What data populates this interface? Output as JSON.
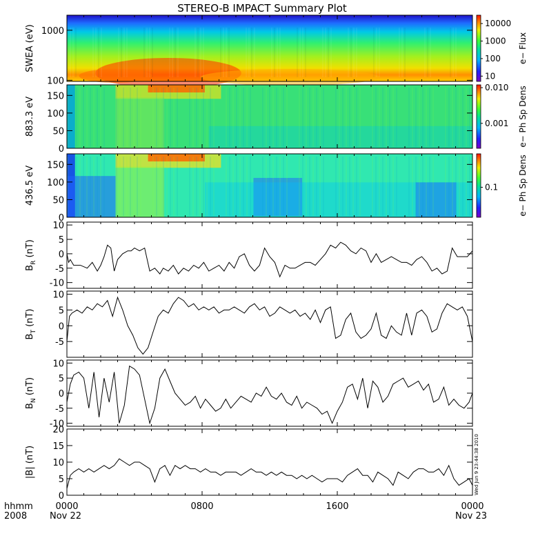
{
  "title": "STEREO-B IMPACT Summary Plot",
  "timestamp": "Wed Jun  9 23:44:38 2010",
  "footer": {
    "row_label_line1": "hhmm",
    "row_label_line2": "2008",
    "date_start": "Nov 22",
    "date_end": "Nov 23"
  },
  "chart_data": [
    {
      "type": "heatmap",
      "ylabel": "SWEA (eV)",
      "colorbar_label": "e− Flux",
      "yscale": "log",
      "ylim": [
        95,
        2000
      ],
      "yticks": [
        "100",
        "1000"
      ],
      "colorbar_ticks": [
        "10",
        "100",
        "1000",
        "10000"
      ],
      "colorbar_scale": "log",
      "colorbar_range": [
        5,
        30000
      ]
    },
    {
      "type": "heatmap",
      "ylabel": "883.3 eV",
      "colorbar_label": "e− Ph Sp Dens",
      "ylim": [
        0,
        180
      ],
      "yticks": [
        "0",
        "50",
        "100",
        "150"
      ],
      "colorbar_ticks": [
        "0.001",
        "0.010"
      ],
      "colorbar_scale": "log",
      "colorbar_range": [
        0.0002,
        0.012
      ]
    },
    {
      "type": "heatmap",
      "ylabel": "436.5 eV",
      "colorbar_label": "e− Ph Sp Dens",
      "ylim": [
        0,
        180
      ],
      "yticks": [
        "0",
        "50",
        "100",
        "150"
      ],
      "colorbar_ticks": [
        "0.1"
      ],
      "colorbar_scale": "log",
      "colorbar_range": [
        0.02,
        0.6
      ]
    },
    {
      "type": "line",
      "ylabel": "B_R (nT)",
      "ylim": [
        -12,
        11
      ],
      "yticks": [
        "10",
        "5",
        "0",
        "-5",
        "-10"
      ],
      "x": [
        0,
        0.1,
        0.2,
        0.4,
        0.8,
        1.2,
        1.5,
        1.8,
        2.0,
        2.2,
        2.4,
        2.6,
        2.8,
        3.0,
        3.3,
        3.6,
        3.8,
        4.0,
        4.3,
        4.6,
        4.9,
        5.2,
        5.5,
        5.7,
        6.0,
        6.3,
        6.6,
        6.9,
        7.2,
        7.5,
        7.8,
        8.1,
        8.4,
        8.7,
        9.0,
        9.3,
        9.6,
        9.9,
        10.2,
        10.5,
        10.8,
        11.1,
        11.4,
        11.7,
        12.0,
        12.3,
        12.6,
        12.9,
        13.2,
        13.5,
        13.8,
        14.1,
        14.4,
        14.7,
        15.0,
        15.3,
        15.6,
        15.9,
        16.2,
        16.5,
        16.8,
        17.1,
        17.4,
        17.7,
        18.0,
        18.3,
        18.6,
        18.9,
        19.2,
        19.5,
        19.8,
        20.1,
        20.4,
        20.7,
        21.0,
        21.3,
        21.6,
        21.9,
        22.2,
        22.5,
        22.8,
        23.1,
        23.4,
        23.7,
        24.0
      ],
      "y": [
        0,
        -3,
        -2,
        -4,
        -4,
        -5,
        -3,
        -6,
        -4,
        -1,
        3,
        2,
        -6,
        -2,
        0,
        1,
        1,
        2,
        1,
        2,
        -6,
        -5,
        -7,
        -5,
        -6,
        -4,
        -7,
        -5,
        -6,
        -4,
        -5,
        -3,
        -6,
        -5,
        -4,
        -6,
        -3,
        -5,
        -1,
        0,
        -4,
        -6,
        -4,
        2,
        -1,
        -3,
        -8,
        -4,
        -5,
        -5,
        -4,
        -3,
        -3,
        -4,
        -2,
        0,
        3,
        2,
        4,
        3,
        1,
        0,
        2,
        1,
        -3,
        0,
        -3,
        -2,
        -1,
        -2,
        -3,
        -3,
        -4,
        -2,
        -1,
        -3,
        -6,
        -5,
        -7,
        -6,
        2,
        -1,
        -1,
        -1,
        1
      ]
    },
    {
      "type": "line",
      "ylabel": "B_T (nT)",
      "ylim": [
        -10,
        11
      ],
      "yticks": [
        "10",
        "5",
        "0",
        "-5"
      ],
      "x": [
        0,
        0.15,
        0.3,
        0.6,
        0.9,
        1.2,
        1.5,
        1.8,
        2.1,
        2.4,
        2.7,
        3.0,
        3.3,
        3.6,
        3.9,
        4.2,
        4.5,
        4.8,
        5.1,
        5.4,
        5.7,
        6.0,
        6.3,
        6.6,
        6.9,
        7.2,
        7.5,
        7.8,
        8.1,
        8.4,
        8.7,
        9.0,
        9.3,
        9.6,
        9.9,
        10.2,
        10.5,
        10.8,
        11.1,
        11.4,
        11.7,
        12.0,
        12.3,
        12.6,
        12.9,
        13.2,
        13.5,
        13.8,
        14.1,
        14.4,
        14.7,
        15.0,
        15.3,
        15.6,
        15.9,
        16.2,
        16.5,
        16.8,
        17.1,
        17.4,
        17.7,
        18.0,
        18.3,
        18.6,
        18.9,
        19.2,
        19.5,
        19.8,
        20.1,
        20.4,
        20.7,
        21.0,
        21.3,
        21.6,
        21.9,
        22.2,
        22.5,
        22.8,
        23.1,
        23.4,
        23.7,
        24.0
      ],
      "y": [
        -5,
        3,
        4,
        5,
        4,
        6,
        5,
        7,
        6,
        8,
        3,
        9,
        5,
        0,
        -3,
        -7,
        -9,
        -7,
        -2,
        3,
        5,
        4,
        7,
        9,
        8,
        6,
        7,
        5,
        6,
        5,
        6,
        4,
        5,
        5,
        6,
        5,
        4,
        6,
        7,
        5,
        6,
        3,
        4,
        6,
        5,
        4,
        5,
        3,
        4,
        2,
        5,
        1,
        5,
        6,
        -4,
        -3,
        2,
        4,
        -2,
        -4,
        -3,
        -1,
        4,
        -3,
        -4,
        0,
        -2,
        -3,
        4,
        -3,
        4,
        5,
        3,
        -2,
        -1,
        4,
        7,
        6,
        5,
        6,
        3,
        -5
      ]
    },
    {
      "type": "line",
      "ylabel": "B_N (nT)",
      "ylim": [
        -11,
        11
      ],
      "yticks": [
        "10",
        "5",
        "0",
        "-5",
        "-10"
      ],
      "x": [
        0,
        0.2,
        0.4,
        0.7,
        1.0,
        1.3,
        1.6,
        1.9,
        2.2,
        2.5,
        2.8,
        3.1,
        3.4,
        3.7,
        4.0,
        4.3,
        4.6,
        4.9,
        5.2,
        5.5,
        5.8,
        6.1,
        6.4,
        6.7,
        7.0,
        7.3,
        7.6,
        7.9,
        8.2,
        8.5,
        8.8,
        9.1,
        9.4,
        9.7,
        10.0,
        10.3,
        10.6,
        10.9,
        11.2,
        11.5,
        11.8,
        12.1,
        12.4,
        12.7,
        13.0,
        13.3,
        13.6,
        13.9,
        14.2,
        14.5,
        14.8,
        15.1,
        15.4,
        15.7,
        16.0,
        16.3,
        16.6,
        16.9,
        17.2,
        17.5,
        17.8,
        18.1,
        18.4,
        18.7,
        19.0,
        19.3,
        19.6,
        19.9,
        20.2,
        20.5,
        20.8,
        21.1,
        21.4,
        21.7,
        22.0,
        22.3,
        22.6,
        22.9,
        23.2,
        23.5,
        23.8,
        24.0
      ],
      "y": [
        -3,
        3,
        6,
        7,
        5,
        -5,
        7,
        -8,
        5,
        -3,
        7,
        -10,
        -4,
        9,
        8,
        6,
        -2,
        -10,
        -5,
        5,
        8,
        4,
        0,
        -2,
        -4,
        -3,
        -1,
        -5,
        -2,
        -4,
        -6,
        -5,
        -2,
        -5,
        -3,
        -1,
        -2,
        -3,
        0,
        -1,
        2,
        -1,
        -2,
        0,
        -3,
        -4,
        -1,
        -5,
        -3,
        -4,
        -5,
        -7,
        -6,
        -10,
        -6,
        -3,
        2,
        3,
        -2,
        5,
        -5,
        4,
        2,
        -3,
        -1,
        3,
        4,
        5,
        2,
        3,
        4,
        1,
        3,
        -3,
        -2,
        2,
        -4,
        -2,
        -4,
        -5,
        -3,
        0
      ]
    },
    {
      "type": "line",
      "ylabel": "|B| (nT)",
      "ylim": [
        0,
        20
      ],
      "yticks": [
        "20",
        "15",
        "10",
        "5",
        "0"
      ],
      "x": [
        0,
        0.2,
        0.4,
        0.7,
        1.0,
        1.3,
        1.6,
        1.9,
        2.2,
        2.5,
        2.8,
        3.1,
        3.4,
        3.7,
        4.0,
        4.3,
        4.6,
        4.9,
        5.2,
        5.5,
        5.8,
        6.1,
        6.4,
        6.7,
        7.0,
        7.3,
        7.6,
        7.9,
        8.2,
        8.5,
        8.8,
        9.1,
        9.4,
        9.7,
        10.0,
        10.3,
        10.6,
        10.9,
        11.2,
        11.5,
        11.8,
        12.1,
        12.4,
        12.7,
        13.0,
        13.3,
        13.6,
        13.9,
        14.2,
        14.5,
        14.8,
        15.1,
        15.4,
        15.7,
        16.0,
        16.3,
        16.6,
        16.9,
        17.2,
        17.5,
        17.8,
        18.1,
        18.4,
        18.7,
        19.0,
        19.3,
        19.6,
        19.9,
        20.2,
        20.5,
        20.8,
        21.1,
        21.4,
        21.7,
        22.0,
        22.3,
        22.6,
        22.9,
        23.2,
        23.5,
        23.8,
        24.0
      ],
      "y": [
        2,
        6,
        7,
        8,
        7,
        8,
        7,
        8,
        9,
        8,
        9,
        11,
        10,
        9,
        10,
        10,
        9,
        8,
        4,
        8,
        9,
        6,
        9,
        8,
        9,
        8,
        8,
        7,
        8,
        7,
        7,
        6,
        7,
        7,
        7,
        6,
        7,
        8,
        7,
        7,
        6,
        7,
        6,
        7,
        6,
        6,
        5,
        6,
        5,
        6,
        5,
        4,
        5,
        5,
        5,
        4,
        6,
        7,
        8,
        6,
        6,
        4,
        7,
        6,
        5,
        3,
        7,
        6,
        5,
        7,
        8,
        8,
        7,
        7,
        8,
        6,
        9,
        5,
        3,
        4,
        5,
        3
      ]
    }
  ],
  "x_axis": {
    "xlim": [
      0,
      24
    ],
    "tick_values": [
      0,
      8,
      16,
      24
    ],
    "tick_labels": [
      "0000",
      "0800",
      "1600",
      "0000"
    ]
  }
}
